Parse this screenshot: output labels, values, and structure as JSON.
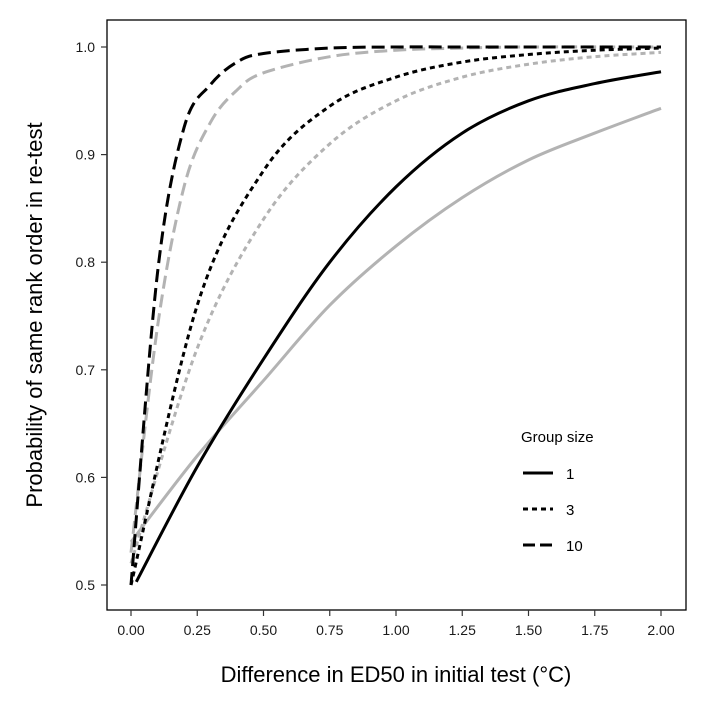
{
  "chart_data": {
    "type": "line",
    "title": "",
    "xlabel": "Difference in ED50 in initial test (°C)",
    "ylabel": "Probability of same rank order in re-test",
    "xlim": [
      0,
      2
    ],
    "ylim": [
      0.5,
      1.0
    ],
    "x_ticks": [
      "0.00",
      "0.25",
      "0.50",
      "0.75",
      "1.00",
      "1.25",
      "1.50",
      "1.75",
      "2.00"
    ],
    "y_ticks": [
      "0.5",
      "0.6",
      "0.7",
      "0.8",
      "0.9",
      "1.0"
    ],
    "grid": false,
    "legend": {
      "title": "Group size",
      "placement": "bottom-right",
      "entries": [
        "1",
        "3",
        "10"
      ]
    },
    "series": [
      {
        "group": "1",
        "color": "#000000",
        "dash": "solid",
        "x": [
          0.02,
          0.25,
          0.5,
          0.75,
          1.0,
          1.25,
          1.5,
          1.75,
          2.0
        ],
        "y": [
          0.503,
          0.61,
          0.71,
          0.8,
          0.87,
          0.92,
          0.95,
          0.966,
          0.977
        ]
      },
      {
        "group": "1",
        "color": "#b3b3b3",
        "dash": "solid",
        "x": [
          0.0,
          0.25,
          0.5,
          0.75,
          1.0,
          1.25,
          1.5,
          1.75,
          2.0
        ],
        "y": [
          0.54,
          0.62,
          0.69,
          0.76,
          0.815,
          0.86,
          0.895,
          0.92,
          0.943
        ]
      },
      {
        "group": "3",
        "color": "#000000",
        "dash": "dotted",
        "x": [
          0.0,
          0.25,
          0.5,
          0.75,
          1.0,
          1.25,
          1.5,
          1.75,
          2.0
        ],
        "y": [
          0.5,
          0.76,
          0.885,
          0.945,
          0.972,
          0.986,
          0.993,
          0.997,
          0.999
        ]
      },
      {
        "group": "3",
        "color": "#b3b3b3",
        "dash": "dotted",
        "x": [
          0.0,
          0.25,
          0.5,
          0.75,
          1.0,
          1.25,
          1.5,
          1.75,
          2.0
        ],
        "y": [
          0.52,
          0.72,
          0.84,
          0.91,
          0.95,
          0.972,
          0.984,
          0.991,
          0.995
        ]
      },
      {
        "group": "10",
        "color": "#000000",
        "dash": "dashed",
        "x": [
          0.0,
          0.1,
          0.2,
          0.3,
          0.4,
          0.5,
          0.75,
          1.0,
          1.25,
          1.5,
          2.0
        ],
        "y": [
          0.5,
          0.79,
          0.925,
          0.965,
          0.986,
          0.994,
          0.999,
          1.0,
          1.0,
          1.0,
          1.0
        ]
      },
      {
        "group": "10",
        "color": "#b3b3b3",
        "dash": "dashed",
        "x": [
          0.0,
          0.1,
          0.2,
          0.3,
          0.4,
          0.5,
          0.75,
          1.0,
          1.25,
          1.5,
          2.0
        ],
        "y": [
          0.53,
          0.74,
          0.87,
          0.93,
          0.96,
          0.976,
          0.991,
          0.997,
          0.999,
          1.0,
          1.0
        ]
      }
    ]
  }
}
